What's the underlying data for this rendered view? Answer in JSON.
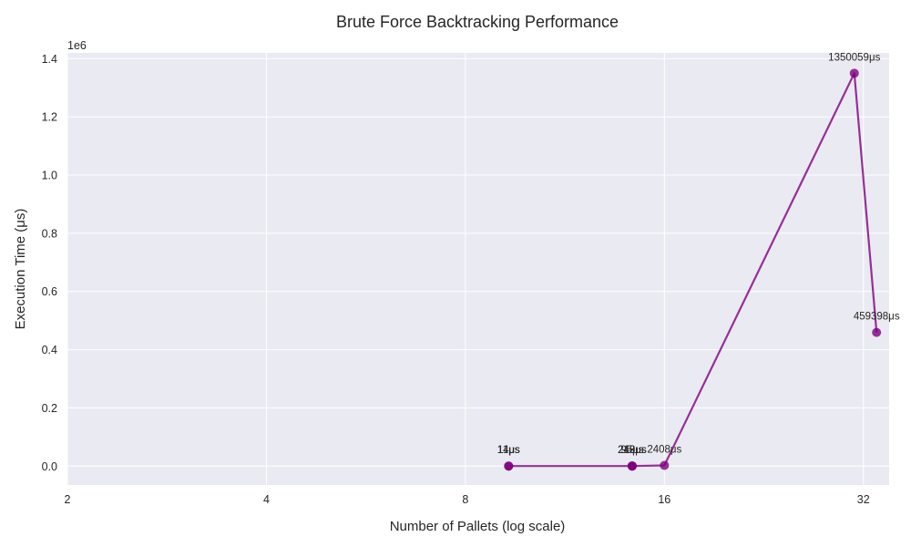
{
  "chart_data": {
    "type": "line",
    "title": "Brute Force Backtracking Performance",
    "xlabel": "Number of Pallets (log scale)",
    "ylabel": "Execution Time (μs)",
    "x_scale": "log2",
    "xlim": [
      2,
      35
    ],
    "ylim": [
      -65000,
      1420000
    ],
    "y_offset_text": "1e6",
    "x_ticks": [
      2,
      4,
      8,
      16,
      32
    ],
    "x_tick_labels": [
      "2",
      "4",
      "8",
      "16",
      "32"
    ],
    "y_ticks": [
      0,
      200000,
      400000,
      600000,
      800000,
      1000000,
      1200000,
      1400000
    ],
    "y_tick_labels": [
      "0.0",
      "0.2",
      "0.4",
      "0.6",
      "0.8",
      "1.0",
      "1.2",
      "1.4"
    ],
    "grid": true,
    "legend": "none",
    "series": [
      {
        "color": "#800080",
        "points": [
          {
            "x": 9.3,
            "y": 11,
            "label": "11μs"
          },
          {
            "x": 9.3,
            "y": 14,
            "label": "14μs"
          },
          {
            "x": 14.3,
            "y": 95,
            "label": "95μs"
          },
          {
            "x": 14.3,
            "y": 218,
            "label": "218μs"
          },
          {
            "x": 14.3,
            "y": 249,
            "label": "249μs"
          },
          {
            "x": 16,
            "y": 2408,
            "label": "2408μs"
          },
          {
            "x": 31,
            "y": 1350059,
            "label": "1350059μs"
          },
          {
            "x": 33.5,
            "y": 459398,
            "label": "459398μs"
          }
        ]
      }
    ]
  }
}
